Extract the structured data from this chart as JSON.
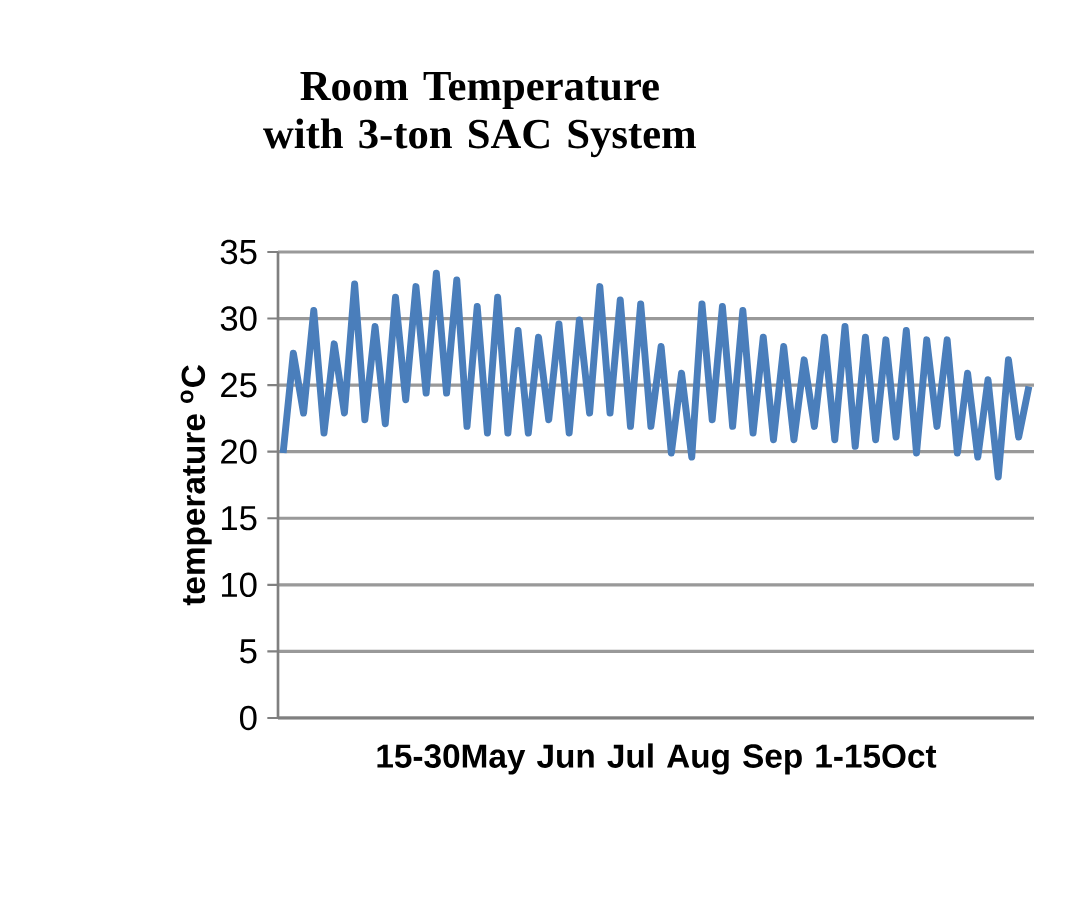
{
  "chart_data": {
    "type": "line",
    "title": "Room Temperature with 3-ton SAC System",
    "ylabel": "temperature $^{o}$C",
    "xlabel": "15-30May   Jun   Jul   Aug   Sep   1-15Oct",
    "categories": [
      null,
      null,
      null,
      null,
      null,
      null,
      null,
      null,
      null,
      null,
      null,
      null,
      null,
      null,
      null,
      null,
      null,
      null,
      null,
      null,
      null,
      null,
      null,
      null,
      null,
      null,
      null,
      null,
      null,
      null,
      null,
      null,
      null,
      null,
      null,
      null,
      null,
      null,
      null,
      null,
      null,
      null,
      null,
      null,
      null,
      null,
      null,
      null,
      null,
      null,
      null,
      null,
      null,
      null,
      null,
      null,
      null,
      null,
      null,
      null,
      null,
      null,
      null,
      null,
      null,
      null,
      null,
      null,
      null,
      null,
      null,
      null,
      null,
      null
    ],
    "values": [
      19.9,
      27.4,
      22.9,
      30.6,
      21.4,
      28.1,
      22.9,
      32.6,
      22.4,
      29.4,
      22.1,
      31.6,
      23.9,
      32.4,
      24.4,
      33.4,
      24.4,
      32.9,
      21.9,
      30.9,
      21.4,
      31.6,
      21.4,
      29.1,
      21.4,
      28.6,
      22.4,
      29.6,
      21.4,
      29.9,
      22.9,
      32.4,
      22.9,
      31.4,
      21.9,
      31.1,
      21.9,
      27.9,
      19.9,
      25.9,
      19.6,
      31.1,
      22.4,
      30.9,
      21.9,
      30.6,
      21.4,
      28.6,
      20.9,
      27.9,
      20.9,
      26.9,
      21.9,
      28.6,
      20.9,
      29.4,
      20.4,
      28.6,
      20.9,
      28.4,
      21.1,
      29.1,
      19.9,
      28.4,
      21.9,
      28.4,
      19.9,
      25.9,
      19.6,
      25.4,
      18.1,
      26.9,
      21.1,
      24.9
    ],
    "color": "#4a7ebb",
    "ylim": [
      0,
      35
    ],
    "yticks": [
      0,
      5,
      10,
      15,
      20,
      25,
      30,
      35
    ],
    "grid": "y",
    "tick_labels": "y"
  }
}
